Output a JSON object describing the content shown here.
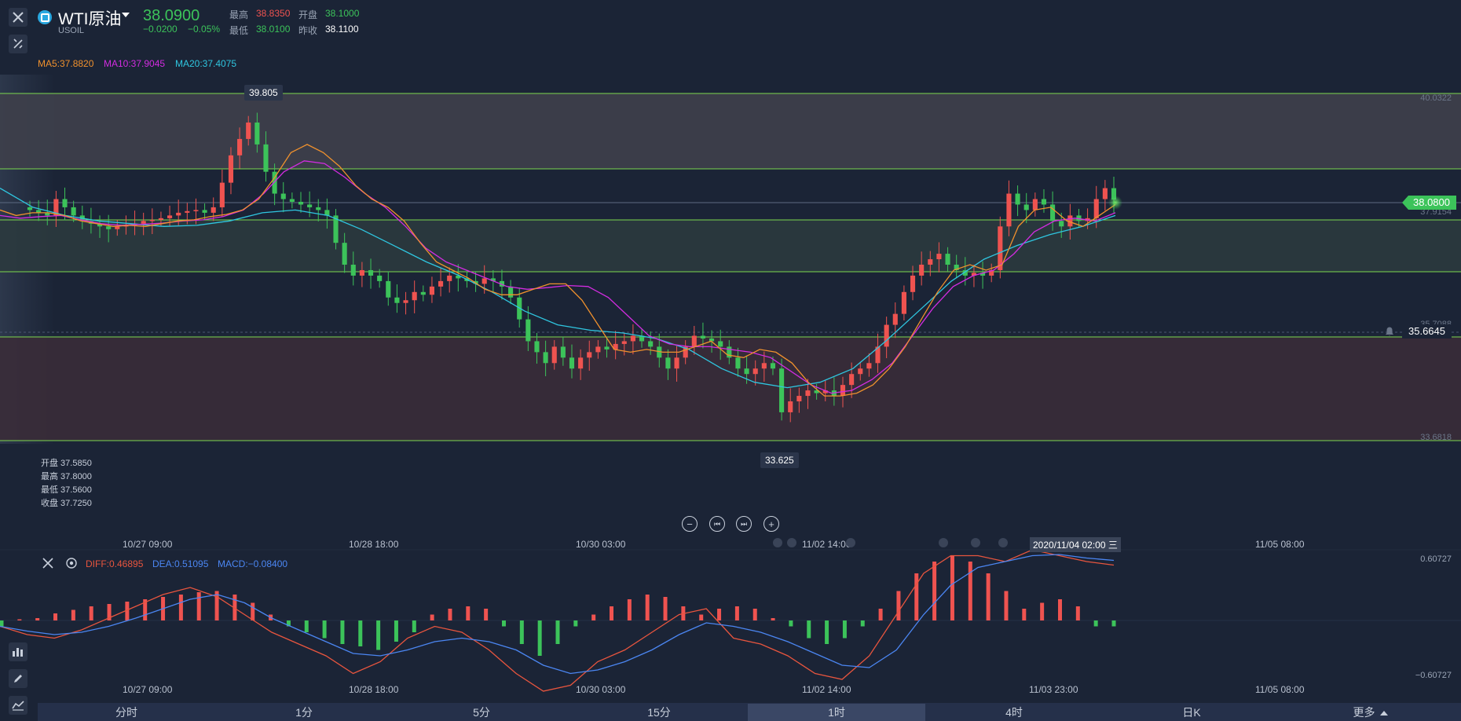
{
  "header": {
    "symbol": "WTI原油",
    "code": "USOIL",
    "price": "38.0900",
    "change": "−0.0200",
    "change_pct": "−0.05%",
    "high_label": "最高",
    "high_value": "38.8350",
    "open_label": "开盘",
    "open_value": "38.1000",
    "low_label": "最低",
    "low_value": "38.0100",
    "prev_label": "昨收",
    "prev_value": "38.1100"
  },
  "ma_legend": {
    "ma5": "MA5:37.8820",
    "ma10": "MA10:37.9045",
    "ma20": "MA20:37.4075"
  },
  "ohlc_box": {
    "open": "开盘 37.5850",
    "high": "最高 37.8000",
    "low": "最低 37.5600",
    "close": "收盘 37.7250"
  },
  "price_axis": {
    "top": "40.0322",
    "r2": "37.9154",
    "r3": "35.7088",
    "bottom": "33.6818",
    "current_price": "38.0800",
    "alert_price": "35.6645"
  },
  "callouts": {
    "high": "39.805",
    "low": "33.625"
  },
  "time_labels": [
    "10/27 09:00",
    "10/28 18:00",
    "10/30 03:00",
    "11/02 14:00",
    "11/03 23:00",
    "11/05 08:00"
  ],
  "crosshair_time": "2020/11/04 02:00 三",
  "macd": {
    "diff": "DIFF:0.46895",
    "dea": "DEA:0.51095",
    "macd": "MACD:−0.08400",
    "top": "0.60727",
    "bottom": "−0.60727"
  },
  "tabs": [
    "分时",
    "1分",
    "5分",
    "15分",
    "1时",
    "4时",
    "日K",
    "更多"
  ],
  "active_tab": "1时",
  "colors": {
    "up": "#ef5350",
    "down": "#3cc35a",
    "ma5": "#f0912d",
    "ma10": "#d22ce0",
    "ma20": "#2fc6e0",
    "diff": "#e8553e",
    "dea": "#4b86f2"
  },
  "chart_data": {
    "type": "candlestick",
    "interval": "1时",
    "ylim": [
      33.6818,
      40.0322
    ],
    "candles_close": [
      37.9,
      37.85,
      37.8,
      38.1,
      37.95,
      37.8,
      37.7,
      37.65,
      37.6,
      37.55,
      37.6,
      37.62,
      37.65,
      37.7,
      37.72,
      37.75,
      37.8,
      37.85,
      37.88,
      37.9,
      37.85,
      37.95,
      38.4,
      38.9,
      39.2,
      39.5,
      39.1,
      38.6,
      38.2,
      38.1,
      38.05,
      38.0,
      37.95,
      37.9,
      37.8,
      37.3,
      36.9,
      36.7,
      36.8,
      36.7,
      36.6,
      36.3,
      36.2,
      36.25,
      36.4,
      36.35,
      36.5,
      36.6,
      36.7,
      36.65,
      36.6,
      36.55,
      36.65,
      36.6,
      36.5,
      36.3,
      35.9,
      35.5,
      35.3,
      35.1,
      35.4,
      35.2,
      35.0,
      35.2,
      35.3,
      35.4,
      35.35,
      35.45,
      35.5,
      35.6,
      35.5,
      35.4,
      35.2,
      35.0,
      35.2,
      35.4,
      35.6,
      35.55,
      35.5,
      35.4,
      35.2,
      35.0,
      34.9,
      35.0,
      35.1,
      35.0,
      34.2,
      34.4,
      34.5,
      34.6,
      34.55,
      34.6,
      34.5,
      34.7,
      34.9,
      35.0,
      35.1,
      35.4,
      35.8,
      36.0,
      36.4,
      36.7,
      36.9,
      37.0,
      37.1,
      36.9,
      36.8,
      36.7,
      36.75,
      36.7,
      36.8,
      37.6,
      38.2,
      38.0,
      37.9,
      38.1,
      38.0,
      37.7,
      37.6,
      37.8,
      37.7,
      37.75,
      38.1,
      38.3,
      38.09
    ],
    "ma5": [
      37.9,
      37.8,
      37.85,
      37.85,
      37.8,
      37.7,
      37.65,
      37.6,
      37.62,
      37.6,
      37.65,
      37.7,
      37.72,
      37.78,
      37.82,
      37.9,
      38.1,
      38.5,
      38.95,
      39.1,
      38.95,
      38.7,
      38.35,
      38.1,
      37.95,
      37.7,
      37.3,
      36.95,
      36.8,
      36.65,
      36.45,
      36.35,
      36.35,
      36.45,
      36.55,
      36.55,
      36.25,
      35.8,
      35.35,
      35.3,
      35.35,
      35.3,
      35.3,
      35.4,
      35.5,
      35.25,
      35.2,
      35.35,
      35.3,
      35.1,
      34.75,
      34.5,
      34.5,
      34.55,
      34.7,
      35.0,
      35.4,
      35.9,
      36.4,
      36.8,
      36.9,
      36.8,
      36.9,
      37.6,
      37.9,
      37.95,
      37.7,
      37.6,
      37.8,
      38.0
    ],
    "ma10": [
      37.8,
      37.75,
      37.78,
      37.8,
      37.72,
      37.65,
      37.62,
      37.64,
      37.66,
      37.7,
      37.72,
      37.78,
      37.9,
      38.2,
      38.6,
      38.8,
      38.75,
      38.5,
      38.2,
      37.95,
      37.6,
      37.2,
      36.95,
      36.8,
      36.65,
      36.5,
      36.45,
      36.48,
      36.52,
      36.5,
      36.3,
      35.95,
      35.6,
      35.45,
      35.4,
      35.4,
      35.35,
      35.3,
      35.2,
      34.95,
      34.7,
      34.55,
      34.6,
      34.8,
      35.1,
      35.6,
      36.1,
      36.5,
      36.7,
      36.8,
      37.1,
      37.5,
      37.7,
      37.75,
      37.7,
      37.85
    ],
    "ma20": [
      38.3,
      37.95,
      37.8,
      37.7,
      37.65,
      37.6,
      37.62,
      37.7,
      37.85,
      37.9,
      37.8,
      37.55,
      37.25,
      36.95,
      36.7,
      36.4,
      36.05,
      35.8,
      35.7,
      35.65,
      35.55,
      35.35,
      35.0,
      34.75,
      34.65,
      34.75,
      35.0,
      35.5,
      36.05,
      36.6,
      37.0,
      37.25,
      37.45,
      37.6,
      37.8
    ],
    "macd_hist": [
      -0.05,
      0.01,
      0.02,
      0.06,
      0.09,
      0.12,
      0.14,
      0.16,
      0.18,
      0.2,
      0.22,
      0.24,
      0.25,
      0.22,
      0.15,
      0.05,
      -0.05,
      -0.1,
      -0.15,
      -0.2,
      -0.22,
      -0.25,
      -0.18,
      -0.1,
      0.05,
      0.1,
      0.12,
      0.1,
      -0.05,
      -0.2,
      -0.3,
      -0.2,
      -0.05,
      0.05,
      0.12,
      0.18,
      0.22,
      0.2,
      0.12,
      0.05,
      0.1,
      0.12,
      0.1,
      0.02,
      -0.05,
      -0.15,
      -0.2,
      -0.15,
      -0.05,
      0.1,
      0.25,
      0.4,
      0.5,
      0.55,
      0.5,
      0.4,
      0.25,
      0.1,
      0.15,
      0.18,
      0.12,
      -0.05,
      -0.05
    ],
    "diff": [
      -0.05,
      -0.12,
      -0.15,
      -0.08,
      0.02,
      0.12,
      0.22,
      0.28,
      0.2,
      0.05,
      -0.1,
      -0.2,
      -0.3,
      -0.45,
      -0.35,
      -0.15,
      -0.05,
      -0.1,
      -0.25,
      -0.45,
      -0.6,
      -0.55,
      -0.35,
      -0.25,
      -0.1,
      0.05,
      0.1,
      -0.15,
      -0.2,
      -0.3,
      -0.45,
      -0.5,
      -0.3,
      0.05,
      0.4,
      0.55,
      0.55,
      0.5,
      0.6,
      0.55,
      0.5,
      0.47
    ],
    "dea": [
      -0.05,
      -0.09,
      -0.12,
      -0.1,
      -0.05,
      0.02,
      0.1,
      0.18,
      0.22,
      0.15,
      0.02,
      -0.08,
      -0.18,
      -0.28,
      -0.3,
      -0.25,
      -0.18,
      -0.15,
      -0.18,
      -0.25,
      -0.38,
      -0.45,
      -0.42,
      -0.35,
      -0.25,
      -0.12,
      -0.02,
      -0.05,
      -0.1,
      -0.18,
      -0.28,
      -0.38,
      -0.4,
      -0.25,
      0.05,
      0.3,
      0.45,
      0.5,
      0.55,
      0.56,
      0.53,
      0.51
    ]
  }
}
